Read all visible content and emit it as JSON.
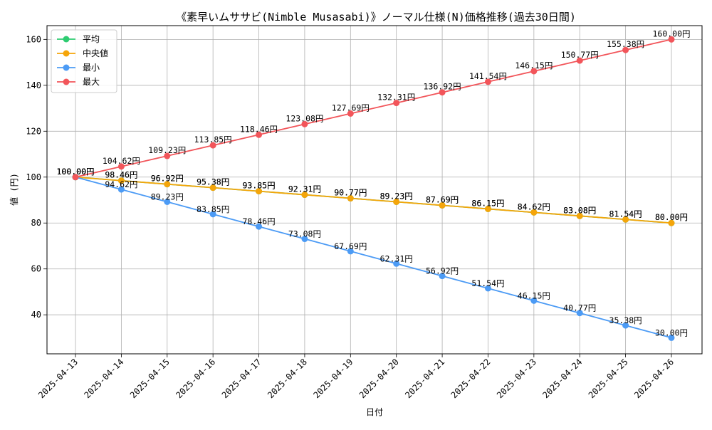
{
  "chart_data": {
    "type": "line",
    "title": "《素早いムササビ(Nimble Musasabi)》ノーマル仕様(N)価格推移(過去30日間)",
    "xlabel": "日付",
    "ylabel": "値 (円)",
    "value_suffix": "円",
    "ylim": [
      23,
      166
    ],
    "yticks": [
      40,
      60,
      80,
      100,
      120,
      140,
      160
    ],
    "grid": true,
    "legend_position": "top-left",
    "categories": [
      "2025-04-13",
      "2025-04-14",
      "2025-04-15",
      "2025-04-16",
      "2025-04-17",
      "2025-04-18",
      "2025-04-19",
      "2025-04-20",
      "2025-04-21",
      "2025-04-22",
      "2025-04-23",
      "2025-04-24",
      "2025-04-25",
      "2025-04-26"
    ],
    "series": [
      {
        "name": "平均",
        "color": "#2ecc71",
        "values": [
          100.0,
          98.46,
          96.92,
          95.38,
          93.85,
          92.31,
          90.77,
          89.23,
          87.69,
          86.15,
          84.62,
          83.08,
          81.54,
          80.0
        ]
      },
      {
        "name": "中央値",
        "color": "#f5a50a",
        "values": [
          100.0,
          98.46,
          96.92,
          95.38,
          93.85,
          92.31,
          90.77,
          89.23,
          87.69,
          86.15,
          84.62,
          83.08,
          81.54,
          80.0
        ]
      },
      {
        "name": "最小",
        "color": "#4c9bf5",
        "values": [
          100.0,
          94.62,
          89.23,
          83.85,
          78.46,
          73.08,
          67.69,
          62.31,
          56.92,
          51.54,
          46.15,
          40.77,
          35.38,
          30.0
        ]
      },
      {
        "name": "最大",
        "color": "#f2555a",
        "values": [
          100.0,
          104.62,
          109.23,
          113.85,
          118.46,
          123.08,
          127.69,
          132.31,
          136.92,
          141.54,
          146.15,
          150.77,
          155.38,
          160.0
        ]
      }
    ]
  }
}
